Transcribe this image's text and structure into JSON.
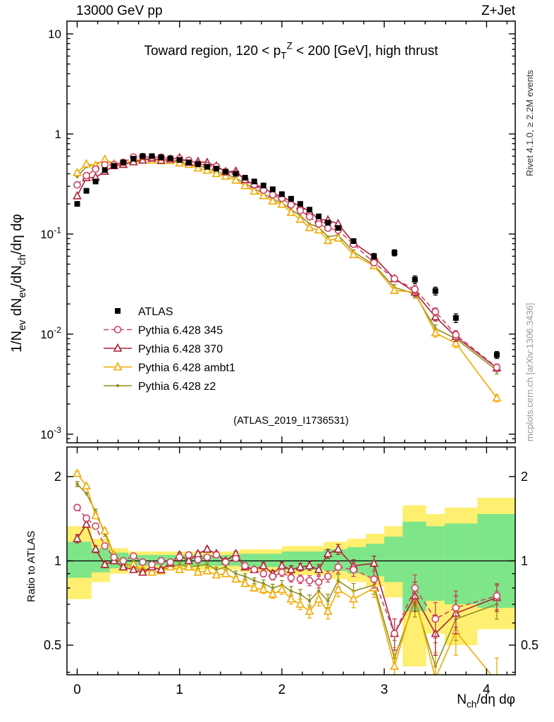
{
  "header": {
    "left": "13000 GeV pp",
    "right": "Z+Jet"
  },
  "side_labels": {
    "top_rotated": "Rivet 4.1.0, ≥ 2.2M events",
    "bottom_rotated": "mcplots.cern.ch [arXiv:1306.3436]"
  },
  "chart_data": {
    "type": "line",
    "title": "Toward region, 120 < p_{T}^{Z} < 200 [GeV], high thrust",
    "watermark": "(ATLAS_2019_I1736531)",
    "xlabel": "N_{ch}/dη dφ",
    "ylabel_main": "1/N_{ev} dN_{ev}/dN_{ch}/dη dφ",
    "ylabel_ratio": "Ratio to ATLAS",
    "xlim": [
      -0.1,
      4.28
    ],
    "ylim_main": [
      0.00082,
      13.4
    ],
    "ylim_ratio": [
      0.392,
      2.55
    ],
    "x_ticks": [
      0,
      1,
      2,
      3,
      4
    ],
    "y_ticks_main": [
      "10",
      "1",
      "10^{-1}",
      "10^{-2}",
      "10^{-3}"
    ],
    "y_tick_values_main": [
      10,
      1,
      0.1,
      0.01,
      0.001
    ],
    "y_ticks_ratio": [
      "2",
      "1",
      "0.5"
    ],
    "y_tick_values_ratio": [
      2,
      1,
      0.5
    ],
    "x": [
      0.0,
      0.09,
      0.18,
      0.27,
      0.36,
      0.45,
      0.55,
      0.64,
      0.73,
      0.82,
      0.91,
      1.0,
      1.09,
      1.18,
      1.27,
      1.36,
      1.45,
      1.55,
      1.64,
      1.73,
      1.82,
      1.91,
      2.0,
      2.09,
      2.18,
      2.27,
      2.36,
      2.45,
      2.55,
      2.7,
      2.9,
      3.1,
      3.3,
      3.5,
      3.7,
      4.1
    ],
    "rel_err": [
      0.04,
      0.03,
      0.03,
      0.025,
      0.02,
      0.02,
      0.02,
      0.02,
      0.02,
      0.02,
      0.02,
      0.02,
      0.02,
      0.02,
      0.02,
      0.02,
      0.02,
      0.02,
      0.02,
      0.02,
      0.025,
      0.025,
      0.03,
      0.03,
      0.03,
      0.035,
      0.04,
      0.04,
      0.045,
      0.05,
      0.06,
      0.07,
      0.09,
      0.09,
      0.1,
      0.08
    ],
    "series": [
      {
        "name": "ATLAS",
        "marker": "square",
        "color": "#000000",
        "line": "none",
        "values": [
          0.2,
          0.27,
          0.335,
          0.435,
          0.48,
          0.52,
          0.565,
          0.6,
          0.6,
          0.585,
          0.57,
          0.55,
          0.52,
          0.5,
          0.47,
          0.45,
          0.42,
          0.4,
          0.365,
          0.335,
          0.305,
          0.28,
          0.25,
          0.225,
          0.2,
          0.175,
          0.15,
          0.13,
          0.115,
          0.085,
          0.06,
          0.065,
          0.035,
          0.027,
          0.0145,
          0.0062
        ]
      },
      {
        "name": "Pythia 6.428 345",
        "marker": "circle-open",
        "color": "#cc4466",
        "line": "dashed",
        "ratio_to_atlas": [
          1.55,
          1.42,
          1.33,
          1.13,
          1.03,
          1.0,
          1.04,
          0.99,
          0.97,
          1.0,
          0.99,
          1.03,
          1.05,
          1.01,
          1.03,
          1.05,
          0.99,
          1.02,
          0.96,
          0.93,
          0.9,
          0.88,
          0.91,
          0.87,
          0.86,
          0.85,
          0.84,
          0.88,
          0.95,
          0.93,
          0.86,
          0.55,
          0.8,
          0.62,
          0.68,
          0.75
        ]
      },
      {
        "name": "Pythia 6.428 370",
        "marker": "triangle-open",
        "color": "#aa2233",
        "line": "solid",
        "ratio_to_atlas": [
          1.2,
          1.35,
          1.1,
          0.97,
          1.0,
          0.95,
          0.93,
          0.91,
          0.95,
          0.93,
          0.98,
          1.05,
          1.0,
          1.06,
          1.1,
          1.06,
          1.0,
          1.06,
          0.95,
          0.93,
          0.96,
          0.9,
          0.96,
          0.93,
          0.95,
          0.96,
          0.93,
          1.06,
          1.1,
          0.96,
          0.98,
          0.55,
          0.75,
          0.55,
          0.65,
          0.74
        ]
      },
      {
        "name": "Pythia 6.428 ambt1",
        "marker": "triangle-open",
        "color": "#f2a900",
        "line": "solid",
        "ratio_to_atlas": [
          2.05,
          1.85,
          1.45,
          1.28,
          1.05,
          0.96,
          0.97,
          0.93,
          0.91,
          0.92,
          0.95,
          0.93,
          0.95,
          0.91,
          0.92,
          0.89,
          0.9,
          0.86,
          0.83,
          0.8,
          0.79,
          0.76,
          0.79,
          0.73,
          0.7,
          0.66,
          0.73,
          0.66,
          0.79,
          0.73,
          0.8,
          0.42,
          0.75,
          0.38,
          0.56,
          0.37
        ]
      },
      {
        "name": "Pythia 6.428 z2",
        "marker": "dot",
        "color": "#8f8f1f",
        "line": "solid",
        "ratio_to_atlas": [
          1.88,
          1.74,
          1.5,
          1.25,
          1.05,
          0.98,
          0.95,
          0.92,
          0.95,
          0.93,
          0.95,
          0.97,
          0.95,
          0.96,
          0.97,
          0.93,
          0.95,
          0.9,
          0.88,
          0.85,
          0.83,
          0.8,
          0.82,
          0.78,
          0.76,
          0.72,
          0.78,
          0.72,
          0.85,
          0.78,
          0.82,
          0.45,
          0.72,
          0.42,
          0.62,
          0.7
        ]
      }
    ],
    "bands": {
      "yellow_color": "#ffef70",
      "green_color": "#7fe589",
      "segments": [
        {
          "x0": -0.1,
          "x1": 0.14,
          "y_lo": 0.73,
          "y_hi": 1.33,
          "g_lo": 0.87,
          "g_hi": 1.17
        },
        {
          "x0": 0.14,
          "x1": 0.32,
          "y_lo": 0.84,
          "y_hi": 1.2,
          "g_lo": 0.91,
          "g_hi": 1.11
        },
        {
          "x0": 0.32,
          "x1": 0.5,
          "y_lo": 0.9,
          "y_hi": 1.11,
          "g_lo": 0.94,
          "g_hi": 1.07
        },
        {
          "x0": 0.5,
          "x1": 1.59,
          "y_lo": 0.93,
          "y_hi": 1.08,
          "g_lo": 0.96,
          "g_hi": 1.05
        },
        {
          "x0": 1.59,
          "x1": 2.0,
          "y_lo": 0.91,
          "y_hi": 1.1,
          "g_lo": 0.95,
          "g_hi": 1.06
        },
        {
          "x0": 2.0,
          "x1": 2.41,
          "y_lo": 0.89,
          "y_hi": 1.13,
          "g_lo": 0.93,
          "g_hi": 1.08
        },
        {
          "x0": 2.41,
          "x1": 2.64,
          "y_lo": 0.86,
          "y_hi": 1.17,
          "g_lo": 0.92,
          "g_hi": 1.1
        },
        {
          "x0": 2.64,
          "x1": 2.82,
          "y_lo": 0.84,
          "y_hi": 1.2,
          "g_lo": 0.9,
          "g_hi": 1.12
        },
        {
          "x0": 2.82,
          "x1": 3.0,
          "y_lo": 0.81,
          "y_hi": 1.25,
          "g_lo": 0.88,
          "g_hi": 1.15
        },
        {
          "x0": 3.0,
          "x1": 3.18,
          "y_lo": 0.74,
          "y_hi": 1.33,
          "g_lo": 0.84,
          "g_hi": 1.22
        },
        {
          "x0": 3.18,
          "x1": 3.41,
          "y_lo": 0.42,
          "y_hi": 1.58,
          "g_lo": 0.66,
          "g_hi": 1.38
        },
        {
          "x0": 3.41,
          "x1": 3.59,
          "y_lo": 0.55,
          "y_hi": 1.47,
          "g_lo": 0.72,
          "g_hi": 1.33
        },
        {
          "x0": 3.59,
          "x1": 3.91,
          "y_lo": 0.5,
          "y_hi": 1.55,
          "g_lo": 0.7,
          "g_hi": 1.36
        },
        {
          "x0": 3.91,
          "x1": 4.28,
          "y_lo": 0.57,
          "y_hi": 1.68,
          "g_lo": 0.68,
          "g_hi": 1.47
        }
      ]
    }
  }
}
